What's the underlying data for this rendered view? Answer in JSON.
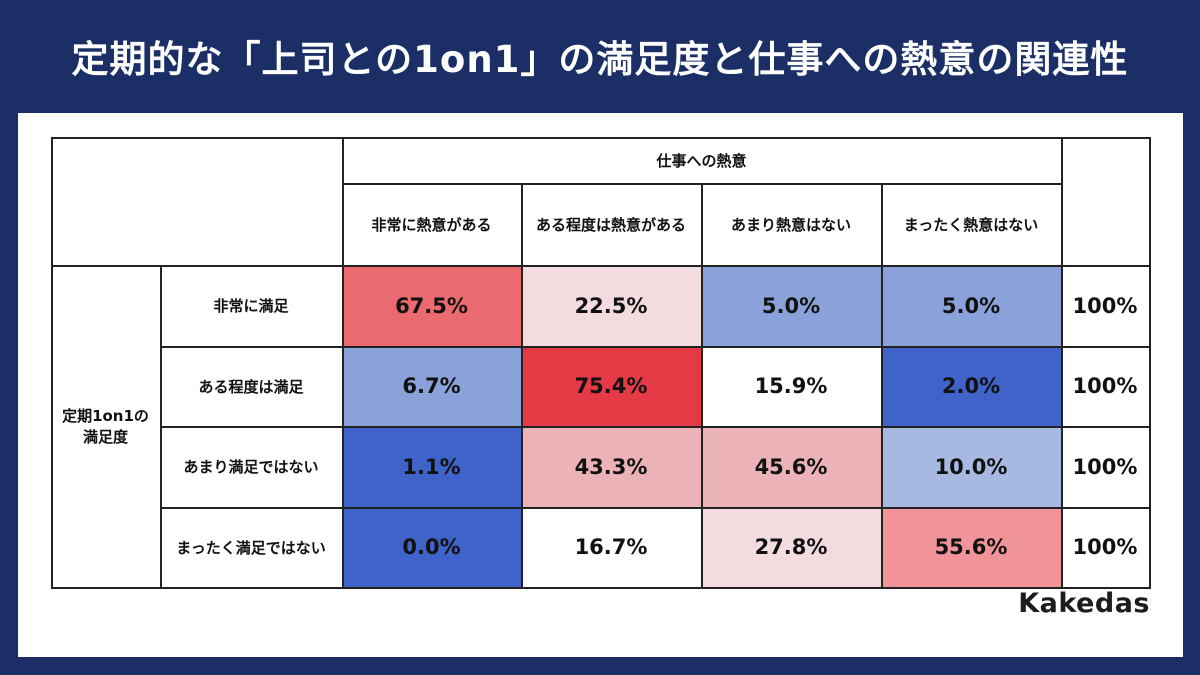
{
  "title": "定期的な「上司との1on1」の満足度と仕事への熱意の関連性",
  "brand": "Kakedas",
  "chart_data": {
    "type": "table",
    "col_group_label": "仕事への熱意",
    "row_group_label": "定期1on1の満足度",
    "columns": [
      "非常に熱意がある",
      "ある程度は熱意がある",
      "あまり熱意はない",
      "まったく熱意はない"
    ],
    "rows": [
      {
        "label": "非常に満足",
        "values": [
          "67.5%",
          "22.5%",
          "5.0%",
          "5.0%"
        ],
        "total": "100%",
        "colors": [
          "#ea6a70",
          "#f2dcdf",
          "#8aa2d9",
          "#8aa2d9"
        ]
      },
      {
        "label": "ある程度は満足",
        "values": [
          "6.7%",
          "75.4%",
          "15.9%",
          "2.0%"
        ],
        "total": "100%",
        "colors": [
          "#8aa2d9",
          "#e63946",
          "#ffffff",
          "#3f63c8"
        ]
      },
      {
        "label": "あまり満足ではない",
        "values": [
          "1.1%",
          "43.3%",
          "45.6%",
          "10.0%"
        ],
        "total": "100%",
        "colors": [
          "#3f63c8",
          "#ebb3b7",
          "#ebb3b7",
          "#a8b9e1"
        ]
      },
      {
        "label": "まったく満足ではない",
        "values": [
          "0.0%",
          "16.7%",
          "27.8%",
          "55.6%"
        ],
        "total": "100%",
        "colors": [
          "#3f63c8",
          "#ffffff",
          "#f2dcdf",
          "#f09499"
        ]
      }
    ]
  }
}
